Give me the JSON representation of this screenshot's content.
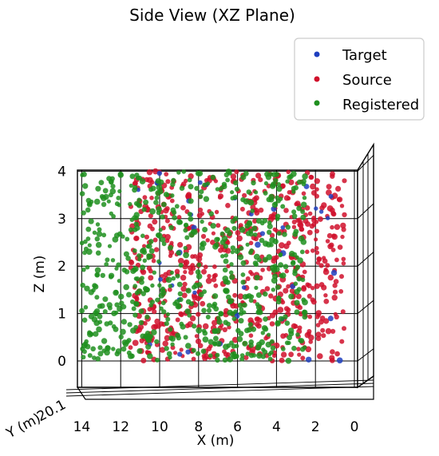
{
  "chart_data": {
    "type": "scatter",
    "title": "Side View (XZ Plane)",
    "xlabel": "X (m)",
    "ylabel": "Z (m)",
    "zlabel": "Y (m)",
    "x_ticks": [
      "14",
      "12",
      "10",
      "8",
      "6",
      "4",
      "2",
      "0"
    ],
    "z_ticks": [
      "0",
      "1",
      "2",
      "3",
      "4"
    ],
    "y_tick_partial": "20.1",
    "xlim": [
      15.0,
      -0.5
    ],
    "zlim": [
      -0.3,
      4.3
    ],
    "x_reversed": true,
    "grid": true,
    "legend": {
      "position": "top-right",
      "entries": [
        "Target",
        "Source",
        "Registered"
      ]
    },
    "series": [
      {
        "name": "Target",
        "color": "#1f3fbf",
        "description_range": {
          "x": [
            0.5,
            11.5
          ],
          "z": [
            0,
            4
          ]
        },
        "approx_count": 40
      },
      {
        "name": "Source",
        "color": "#d0112b",
        "description_range": {
          "x": [
            0.5,
            11.5
          ],
          "z": [
            0,
            4
          ]
        },
        "approx_count": 650
      },
      {
        "name": "Registered",
        "color": "#1f8f1f",
        "description_range": {
          "x": [
            2.5,
            14.0
          ],
          "z": [
            0,
            4
          ]
        },
        "approx_count": 650
      }
    ]
  }
}
